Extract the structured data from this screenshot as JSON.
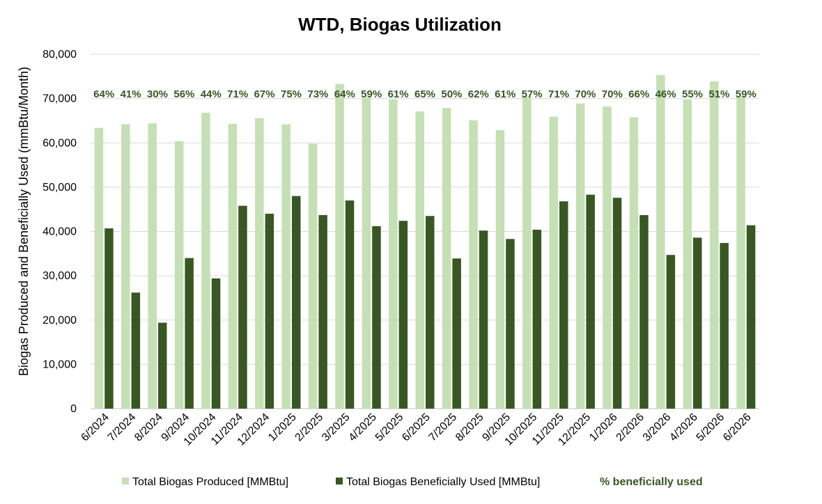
{
  "chart_data": {
    "type": "bar",
    "title": "WTD, Biogas Utilization",
    "xlabel": "",
    "ylabel": "Biogas Produced and Beneficially Used (mmBtu/Month)",
    "ylim": [
      0,
      80000
    ],
    "yticks": [
      "0",
      "10,000",
      "20,000",
      "30,000",
      "40,000",
      "50,000",
      "60,000",
      "70,000",
      "80,000"
    ],
    "grid": true,
    "legend_position": "bottom",
    "categories": [
      "6/2024",
      "7/2024",
      "8/2024",
      "9/2024",
      "10/2024",
      "11/2024",
      "12/2024",
      "1/2025",
      "2/2025",
      "3/2025",
      "4/2025",
      "5/2025",
      "6/2025",
      "7/2025",
      "8/2025",
      "9/2025",
      "10/2025",
      "11/2025",
      "12/2025",
      "1/2026",
      "2/2026",
      "3/2026",
      "4/2026",
      "5/2026",
      "6/2026"
    ],
    "series": [
      {
        "name": "Total Biogas Produced [MMBtu]",
        "color": "#c5e0b4",
        "values": [
          63400,
          64200,
          64400,
          60400,
          66800,
          64300,
          65600,
          64200,
          59800,
          73300,
          70200,
          69800,
          67100,
          67900,
          65100,
          62900,
          70400,
          65900,
          68900,
          68200,
          65800,
          75300,
          69800,
          73900,
          70300
        ]
      },
      {
        "name": "Total Biogas Beneficially Used [MMBtu]",
        "color": "#385723",
        "values": [
          40700,
          26200,
          19400,
          34000,
          29400,
          45800,
          44000,
          48000,
          43700,
          47000,
          41200,
          42400,
          43500,
          33900,
          40200,
          38300,
          40400,
          46800,
          48300,
          47600,
          43700,
          34700,
          38600,
          37400,
          41400
        ]
      }
    ],
    "percent_series": {
      "name": "% beneficially used",
      "color": "#375623",
      "labels": [
        "64%",
        "41%",
        "30%",
        "56%",
        "44%",
        "71%",
        "67%",
        "75%",
        "73%",
        "64%",
        "59%",
        "61%",
        "65%",
        "50%",
        "62%",
        "61%",
        "57%",
        "71%",
        "70%",
        "70%",
        "66%",
        "46%",
        "55%",
        "51%",
        "59%"
      ]
    }
  }
}
